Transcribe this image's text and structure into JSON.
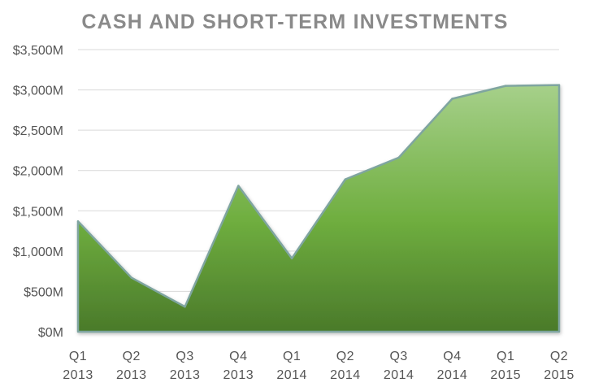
{
  "chart_data": {
    "type": "area",
    "title": "CASH AND SHORT-TERM INVESTMENTS",
    "xlabel": "",
    "ylabel": "",
    "categories": [
      [
        "Q1",
        "2013"
      ],
      [
        "Q2",
        "2013"
      ],
      [
        "Q3",
        "2013"
      ],
      [
        "Q4",
        "2013"
      ],
      [
        "Q1",
        "2014"
      ],
      [
        "Q2",
        "2014"
      ],
      [
        "Q3",
        "2014"
      ],
      [
        "Q4",
        "2014"
      ],
      [
        "Q1",
        "2015"
      ],
      [
        "Q2",
        "2015"
      ]
    ],
    "series": [
      {
        "values": [
          1370,
          670,
          310,
          1810,
          910,
          1890,
          2160,
          2890,
          3050,
          3060
        ]
      }
    ],
    "ylim": [
      0,
      3500
    ],
    "yticks": [
      0,
      500,
      1000,
      1500,
      2000,
      2500,
      3000,
      3500
    ],
    "ytick_labels": [
      "$0M",
      "$500M",
      "$1,000M",
      "$1,500M",
      "$2,000M",
      "$2,500M",
      "$3,000M",
      "$3,500M"
    ],
    "grid": true,
    "legend": "none",
    "colors": {
      "fill_top": "#a6d08a",
      "fill_mid": "#6fae3f",
      "fill_bottom": "#4a7a2a",
      "outline": "#7fa5a0",
      "title": "#8a8a8a",
      "tick_text": "#555555",
      "grid": "#d9d9d9"
    }
  }
}
